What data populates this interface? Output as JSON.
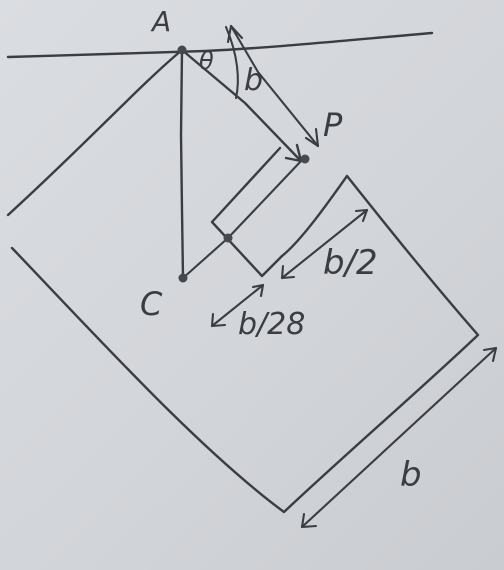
{
  "labels": {
    "pivot": "A",
    "angle": "θ",
    "rod_length": "b",
    "point_p": "P",
    "point_c": "C",
    "half_width": "b/2",
    "small_offset": "b/28",
    "plate_side": "b"
  }
}
